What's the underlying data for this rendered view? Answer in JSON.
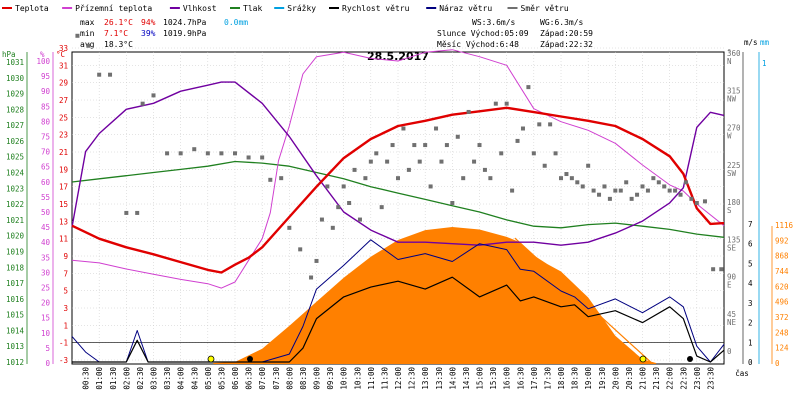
{
  "chart_data": {
    "type": "line",
    "title": "28.5.2017",
    "legend": [
      {
        "label": "Teplota",
        "color": "#e00000"
      },
      {
        "label": "Přízemní teplota",
        "color": "#d040d0"
      },
      {
        "label": "Vlhkost",
        "color": "#7000a0"
      },
      {
        "label": "Tlak",
        "color": "#208020"
      },
      {
        "label": "Srážky",
        "color": "#00a0e0"
      },
      {
        "label": "Rychlost větru",
        "color": "#000000"
      },
      {
        "label": "Náraz větru",
        "color": "#000080"
      },
      {
        "label": "Směr větru",
        "color": "#707070"
      }
    ],
    "stats": {
      "max_label": "max",
      "max_temp": "26.1°C",
      "max_hum": "94%",
      "max_press": "1024.7hPa",
      "max_rain": "0.0mm",
      "min_label": "min",
      "min_temp": "7.1°C",
      "min_hum": "39%",
      "min_press": "1019.9hPa",
      "avg_label": "avg",
      "avg_temp": "18.3°C",
      "ws": "WS:3.6m/s",
      "wg": "WG:6.3m/s",
      "sun": "Slunce Východ:05:09",
      "sun_set": "Západ:20:59",
      "moon": "Měsíc  Východ:6:48",
      "moon_set": "Západ:22:32"
    },
    "axes": {
      "hpa_unit": "hPa",
      "hpa_ticks": [
        "1031",
        "1030",
        "1029",
        "1028",
        "1027",
        "1026",
        "1025",
        "1024",
        "1023",
        "1022",
        "1021",
        "1020",
        "1019",
        "1018",
        "1017",
        "1016",
        "1015",
        "1014",
        "1013",
        "1012"
      ],
      "pct_unit": "%",
      "pct_ticks": [
        "100",
        "95",
        "90",
        "85",
        "80",
        "75",
        "70",
        "65",
        "60",
        "55",
        "50",
        "45",
        "40",
        "35",
        "30",
        "25",
        "20",
        "15",
        "10",
        "5",
        "0"
      ],
      "c_unit": "°C",
      "c_ticks": [
        "33",
        "31",
        "29",
        "27",
        "25",
        "23",
        "21",
        "19",
        "17",
        "15",
        "13",
        "11",
        "9",
        "7",
        "5",
        "3",
        "1",
        "-1",
        "-3"
      ],
      "dir_unit": "°",
      "dir_ticks": [
        [
          "360",
          "N"
        ],
        [
          "315",
          "NW"
        ],
        [
          "270",
          "W"
        ],
        [
          "225",
          "SW"
        ],
        [
          "180",
          "S"
        ],
        [
          "135",
          "SE"
        ],
        [
          "90",
          "E"
        ],
        [
          "45",
          "NE"
        ],
        [
          "0",
          ""
        ]
      ],
      "ms_unit": "m/s",
      "ms_ticks": [
        "7",
        "6",
        "5",
        "4",
        "3",
        "2",
        "1",
        "0"
      ],
      "mm_unit": "mm",
      "mm_top": "1",
      "wm_ticks": [
        "1116",
        "992",
        "868",
        "744",
        "620",
        "496",
        "372",
        "248",
        "124",
        "0"
      ],
      "time_unit": "čas",
      "time_ticks": [
        "00:30",
        "01:00",
        "01:30",
        "02:00",
        "02:30",
        "03:00",
        "03:30",
        "04:00",
        "04:30",
        "05:00",
        "05:30",
        "06:00",
        "06:30",
        "07:00",
        "07:30",
        "08:00",
        "08:30",
        "09:00",
        "09:30",
        "10:00",
        "10:30",
        "11:00",
        "11:30",
        "12:00",
        "12:30",
        "13:00",
        "13:30",
        "14:00",
        "14:30",
        "15:00",
        "15:30",
        "16:00",
        "16:30",
        "17:00",
        "17:30",
        "18:00",
        "18:30",
        "19:00",
        "19:30",
        "20:00",
        "20:30",
        "21:00",
        "21:30",
        "22:00",
        "22:30",
        "23:00",
        "23:30"
      ]
    },
    "x_range_hours": [
      0,
      24
    ],
    "series": [
      {
        "name": "Teplota",
        "unit": "°C",
        "x": [
          0,
          1,
          2,
          3,
          4,
          5,
          5.5,
          6,
          6.5,
          7,
          8,
          9,
          10,
          11,
          12,
          13,
          14,
          15,
          16,
          17,
          18,
          19,
          20,
          21,
          22,
          22.5,
          23,
          23.5,
          24
        ],
        "y": [
          12.5,
          11,
          10,
          9.2,
          8.3,
          7.4,
          7.1,
          8,
          8.8,
          10,
          13.5,
          17,
          20.3,
          22.5,
          24,
          24.6,
          25.3,
          25.7,
          26.1,
          25.6,
          25.1,
          24.6,
          24,
          22.5,
          20.5,
          18.5,
          14.5,
          12.7,
          12.8
        ]
      },
      {
        "name": "Přízemní teplota",
        "unit": "°C",
        "x": [
          0,
          1,
          2,
          3,
          4,
          5,
          5.5,
          6,
          6.5,
          7,
          7.3,
          7.6,
          8,
          8.5,
          9,
          10,
          11,
          12,
          13,
          14,
          15,
          16,
          17,
          18,
          19,
          20,
          21,
          22,
          22.5,
          23,
          24
        ],
        "y": [
          8.5,
          8.2,
          7.5,
          6.9,
          6.3,
          5.8,
          5.3,
          6,
          8.5,
          11,
          14,
          20,
          24,
          30,
          32,
          32.5,
          31.8,
          31.5,
          32.5,
          32.8,
          32,
          31,
          26,
          24.5,
          23.5,
          22,
          19.5,
          17.2,
          16.5,
          15,
          12.5
        ]
      },
      {
        "name": "Vlhkost",
        "unit": "%",
        "x": [
          0,
          0.5,
          1,
          2,
          3,
          4,
          5,
          5.5,
          6,
          7,
          8,
          9,
          10,
          11,
          12,
          13,
          14,
          15,
          16,
          17,
          18,
          19,
          20,
          21,
          22,
          22.5,
          23,
          23.5,
          24
        ],
        "y": [
          45,
          70,
          76,
          84,
          86,
          90,
          92,
          93,
          93,
          86,
          75,
          62,
          50,
          44,
          40,
          40,
          39.5,
          39,
          40,
          40,
          39,
          40,
          43,
          47,
          53,
          58,
          78,
          83,
          82
        ]
      },
      {
        "name": "Tlak",
        "unit": "hPa",
        "x": [
          0,
          1,
          2,
          3,
          4,
          5,
          6,
          7,
          8,
          9,
          10,
          11,
          12,
          13,
          14,
          15,
          16,
          17,
          18,
          19,
          20,
          21,
          22,
          23,
          24
        ],
        "y": [
          1023.4,
          1023.6,
          1023.8,
          1024.0,
          1024.2,
          1024.4,
          1024.7,
          1024.6,
          1024.4,
          1024.0,
          1023.6,
          1023.1,
          1022.7,
          1022.3,
          1021.9,
          1021.5,
          1021.0,
          1020.6,
          1020.5,
          1020.7,
          1020.8,
          1020.6,
          1020.4,
          1020.1,
          1019.9
        ]
      },
      {
        "name": "Rychlost větru",
        "unit": "m/s",
        "x": [
          0,
          0.5,
          1,
          2,
          2.4,
          2.8,
          3,
          4,
          5,
          6,
          7,
          8,
          8.5,
          9,
          10,
          11,
          12,
          13,
          14,
          15,
          16,
          16.5,
          17,
          18,
          18.5,
          19,
          20,
          21,
          22,
          22.5,
          23,
          23.5,
          24
        ],
        "y": [
          0,
          0,
          0,
          0,
          1.1,
          0,
          0,
          0,
          0,
          0,
          0,
          0,
          0.7,
          2.2,
          3.3,
          3.8,
          4.1,
          3.7,
          4.3,
          3.3,
          3.9,
          3.1,
          3.3,
          2.8,
          2.9,
          2.3,
          2.6,
          2.0,
          2.8,
          2.2,
          0.3,
          0,
          0.6
        ]
      },
      {
        "name": "Náraz větru",
        "unit": "m/s",
        "x": [
          0,
          0.5,
          1,
          2,
          2.4,
          2.8,
          3,
          4,
          5,
          6,
          7,
          8,
          8.5,
          9,
          10,
          11,
          12,
          13,
          14,
          15,
          16,
          16.5,
          17,
          18,
          18.5,
          19,
          20,
          21,
          22,
          22.5,
          23,
          23.5,
          24
        ],
        "y": [
          1.3,
          0.5,
          0,
          0,
          1.6,
          0,
          0,
          0,
          0,
          0,
          0,
          0.4,
          1.8,
          3.7,
          4.9,
          6.2,
          5.2,
          5.5,
          5.1,
          6.0,
          5.7,
          4.7,
          4.6,
          3.6,
          3.3,
          2.7,
          3.2,
          2.5,
          3.3,
          2.8,
          0.8,
          0,
          0.9
        ]
      },
      {
        "name": "Sluneční záření",
        "unit": "W/m²",
        "x": [
          5.2,
          6,
          7,
          8,
          9,
          10,
          11,
          12,
          13,
          14,
          15,
          16,
          16.5,
          17,
          17.5,
          18,
          19,
          20,
          21,
          21.5
        ],
        "y": [
          0,
          8,
          115,
          300,
          495,
          690,
          860,
          995,
          1075,
          1100,
          1080,
          1020,
          975,
          870,
          800,
          740,
          530,
          220,
          30,
          0
        ]
      },
      {
        "name": "Směr větru",
        "unit": "°",
        "type": "scatter",
        "x": [
          0.2,
          0.6,
          1,
          1.4,
          2,
          2.4,
          2.6,
          3,
          3.5,
          4,
          4.5,
          5,
          5.5,
          6,
          6.5,
          7,
          7.3,
          7.7,
          8,
          8.4,
          8.8,
          9,
          9.2,
          9.4,
          9.6,
          9.8,
          10,
          10.2,
          10.4,
          10.6,
          10.8,
          11,
          11.2,
          11.4,
          11.6,
          11.8,
          12,
          12.2,
          12.4,
          12.6,
          12.8,
          13,
          13.2,
          13.4,
          13.6,
          13.8,
          14,
          14.2,
          14.4,
          14.6,
          14.8,
          15,
          15.2,
          15.4,
          15.6,
          15.8,
          16,
          16.2,
          16.4,
          16.6,
          16.8,
          17,
          17.2,
          17.4,
          17.6,
          17.8,
          18,
          18.2,
          18.4,
          18.6,
          18.8,
          19,
          19.2,
          19.4,
          19.6,
          19.8,
          20,
          20.2,
          20.4,
          20.6,
          20.8,
          21,
          21.2,
          21.4,
          21.6,
          21.8,
          22,
          22.2,
          22.4,
          22.6,
          22.8,
          23,
          23.3,
          23.6,
          23.9
        ],
        "y": [
          382,
          370,
          335,
          335,
          168,
          168,
          300,
          310,
          240,
          240,
          245,
          240,
          240,
          240,
          235,
          235,
          208,
          210,
          150,
          124,
          90,
          110,
          160,
          200,
          150,
          175,
          200,
          180,
          220,
          160,
          210,
          230,
          240,
          175,
          230,
          250,
          210,
          270,
          220,
          250,
          230,
          250,
          200,
          270,
          230,
          250,
          180,
          260,
          210,
          290,
          230,
          250,
          220,
          210,
          300,
          240,
          300,
          195,
          255,
          270,
          320,
          240,
          275,
          225,
          275,
          240,
          210,
          215,
          210,
          205,
          200,
          225,
          195,
          190,
          200,
          185,
          195,
          195,
          205,
          185,
          190,
          200,
          195,
          210,
          205,
          200,
          195,
          195,
          190,
          205,
          185,
          180,
          182,
          100,
          100
        ]
      }
    ]
  }
}
